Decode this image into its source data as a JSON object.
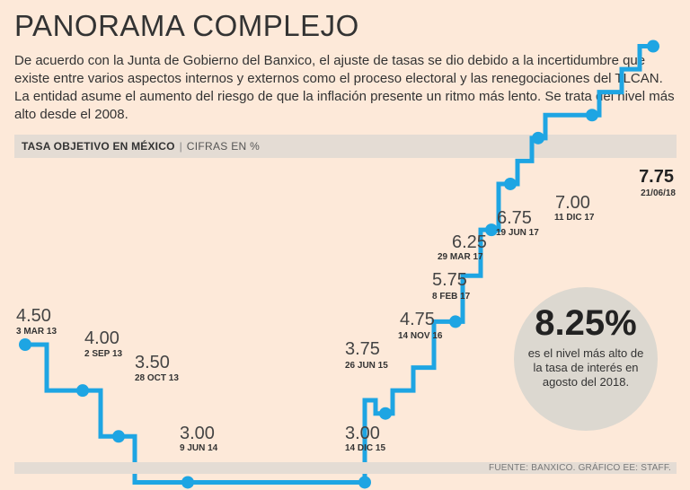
{
  "title": "PANORAMA COMPLEJO",
  "intro": "De acuerdo con la Junta de Gobierno del Banxico, el ajuste de tasas se dio debido a la incertidumbre que existe entre varios aspectos internos y externos como el proceso electoral y las renegociaciones del TLCAN. La entidad asume el aumento del riesgo de que la inflación presente un ritmo más lento. Se trata del nivel más alto desde el 2008.",
  "header": {
    "main": "TASA OBJETIVO EN MÉXICO",
    "separator": "|",
    "sub": "CIFRAS EN %"
  },
  "footer": "FUENTE: BANXICO. GRÁFICO EE: STAFF.",
  "callout": {
    "value": "8.25%",
    "text": "es el nivel más alto de la tasa de interés en agosto del 2018."
  },
  "colors": {
    "line": "#1ea5e3",
    "background": "#fde9d9",
    "bar": "#e4dcd4",
    "circle": "#dcd8d0"
  },
  "chart_data": {
    "type": "line",
    "step": true,
    "title": "TASA OBJETIVO EN MÉXICO",
    "ylabel": "CIFRAS EN %",
    "points": [
      {
        "value": "4.50",
        "date": "3 MAR 13",
        "labeled": true
      },
      {
        "value": "4.00",
        "date": "2 SEP 13",
        "labeled": true
      },
      {
        "value": "3.50",
        "date": "28 OCT 13",
        "labeled": true
      },
      {
        "value": "3.00",
        "date": "9 JUN 14",
        "labeled": true
      },
      {
        "value": "3.00",
        "date": "14 DIC 15",
        "labeled": true
      },
      {
        "value": "3.75",
        "date": "26 JUN 15",
        "labeled": true
      },
      {
        "value": "4.00",
        "date": "",
        "labeled": false
      },
      {
        "value": "4.25",
        "date": "",
        "labeled": false
      },
      {
        "value": "4.75",
        "date": "14 NOV 16",
        "labeled": true
      },
      {
        "value": "5.25",
        "date": "",
        "labeled": false
      },
      {
        "value": "5.75",
        "date": "8 FEB 17",
        "labeled": true
      },
      {
        "value": "6.25",
        "date": "29 MAR 17",
        "labeled": true
      },
      {
        "value": "6.50",
        "date": "",
        "labeled": false
      },
      {
        "value": "6.75",
        "date": "19 JUN 17",
        "labeled": true
      },
      {
        "value": "7.00",
        "date": "11 DIC 17",
        "labeled": true
      },
      {
        "value": "7.25",
        "date": "",
        "labeled": false
      },
      {
        "value": "7.50",
        "date": "",
        "labeled": false
      },
      {
        "value": "7.75",
        "date": "21/06/18",
        "labeled": true
      }
    ]
  }
}
